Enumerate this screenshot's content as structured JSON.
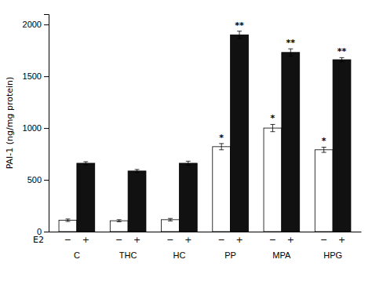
{
  "chart_data": {
    "type": "bar",
    "ylabel": "PAI-1 (ng/mg protein)",
    "xlabel": "E2",
    "categories": [
      "C",
      "THC",
      "HC",
      "PP",
      "MPA",
      "HPG"
    ],
    "series": [
      {
        "name": "−",
        "color": "#ffffff",
        "values": [
          110,
          105,
          115,
          820,
          1000,
          790
        ],
        "errors": [
          12,
          10,
          12,
          30,
          35,
          25
        ],
        "annotations": [
          null,
          null,
          null,
          "*",
          "*",
          "*"
        ]
      },
      {
        "name": "+",
        "color": "#111111",
        "values": [
          660,
          585,
          660,
          1900,
          1730,
          1660
        ],
        "errors": [
          15,
          15,
          20,
          35,
          35,
          20
        ],
        "annotations": [
          null,
          null,
          null,
          "**",
          "**",
          "**"
        ]
      }
    ],
    "ylim": [
      0,
      2100
    ],
    "yticks": [
      0,
      500,
      1000,
      1500,
      2000
    ],
    "grid": false
  }
}
